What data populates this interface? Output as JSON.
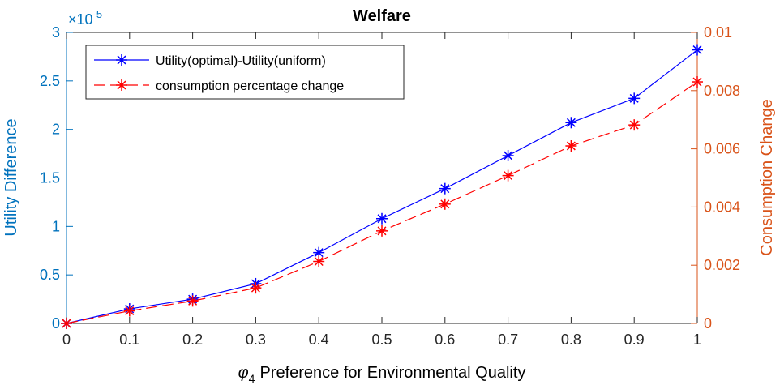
{
  "chart_data": {
    "type": "line",
    "title": "Welfare",
    "xlabel": "Preference for Environmental Quality",
    "xlabel_symbol": "φ",
    "xlabel_subscript": "4",
    "ylabel_left": "Utility Difference",
    "ylabel_right": "Consumption Change",
    "exponent_base": "×10",
    "exponent_power": "-5",
    "x": [
      0,
      0.1,
      0.2,
      0.3,
      0.4,
      0.5,
      0.6,
      0.7,
      0.8,
      0.9,
      1
    ],
    "xlim": [
      0,
      1
    ],
    "ylim_left": [
      0,
      3
    ],
    "ylim_right": [
      0,
      0.01
    ],
    "x_ticks": [
      "0",
      "0.1",
      "0.2",
      "0.3",
      "0.4",
      "0.5",
      "0.6",
      "0.7",
      "0.8",
      "0.9",
      "1"
    ],
    "y_left_ticks": [
      "0",
      "0.5",
      "1",
      "1.5",
      "2",
      "2.5",
      "3"
    ],
    "y_right_ticks": [
      "0",
      "0.002",
      "0.004",
      "0.006",
      "0.008",
      "0.01"
    ],
    "grid": false,
    "legend_position": "top-left",
    "series": [
      {
        "name": "Utility(optimal)-Utility(uniform)",
        "axis": "left",
        "style": "solid",
        "marker": "asterisk",
        "color": "#0000ff",
        "values": [
          0,
          0.15,
          0.25,
          0.41,
          0.73,
          1.08,
          1.39,
          1.73,
          2.07,
          2.32,
          2.82
        ]
      },
      {
        "name": "consumption percentage change",
        "axis": "right",
        "style": "dashed",
        "marker": "asterisk",
        "color": "#ff0000",
        "values": [
          0,
          0.00043,
          0.00077,
          0.00122,
          0.00213,
          0.00318,
          0.0041,
          0.00508,
          0.0061,
          0.00682,
          0.0083
        ]
      }
    ],
    "left_axis_color": "#0072bd",
    "right_axis_color": "#d95319"
  }
}
